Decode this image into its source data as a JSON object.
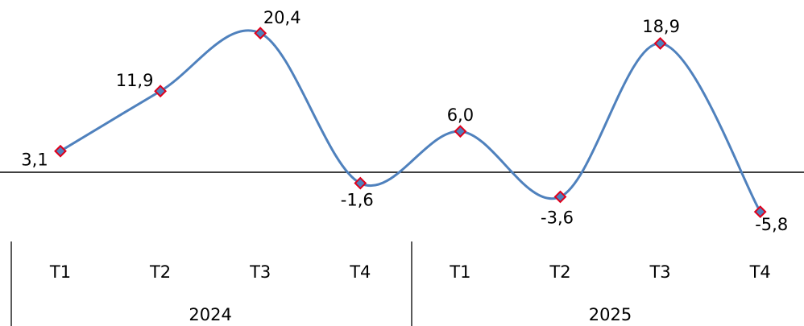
{
  "chart_data": {
    "type": "line",
    "smooth": true,
    "categories": [
      "T1",
      "T2",
      "T3",
      "T4",
      "T1",
      "T2",
      "T3",
      "T4"
    ],
    "groups": [
      {
        "label": "2024",
        "categories": [
          "T1",
          "T2",
          "T3",
          "T4"
        ]
      },
      {
        "label": "2025",
        "categories": [
          "T1",
          "T2",
          "T3",
          "T4"
        ]
      }
    ],
    "series": [
      {
        "values": [
          3.1,
          11.9,
          20.4,
          -1.6,
          6.0,
          -3.6,
          18.9,
          -5.8
        ],
        "color": "#4f81bd",
        "marker": "diamond",
        "marker_fill": "#4f81bd",
        "marker_edge": "#e0001b"
      }
    ],
    "data_labels": [
      "3,1",
      "11,9",
      "20,4",
      "-1,6",
      "6,0",
      "-3,6",
      "18,9",
      "-5,8"
    ],
    "xlabel": "",
    "ylabel": "",
    "y_axis_visible": false,
    "zero_line": true,
    "grid": false,
    "legend": "none"
  }
}
